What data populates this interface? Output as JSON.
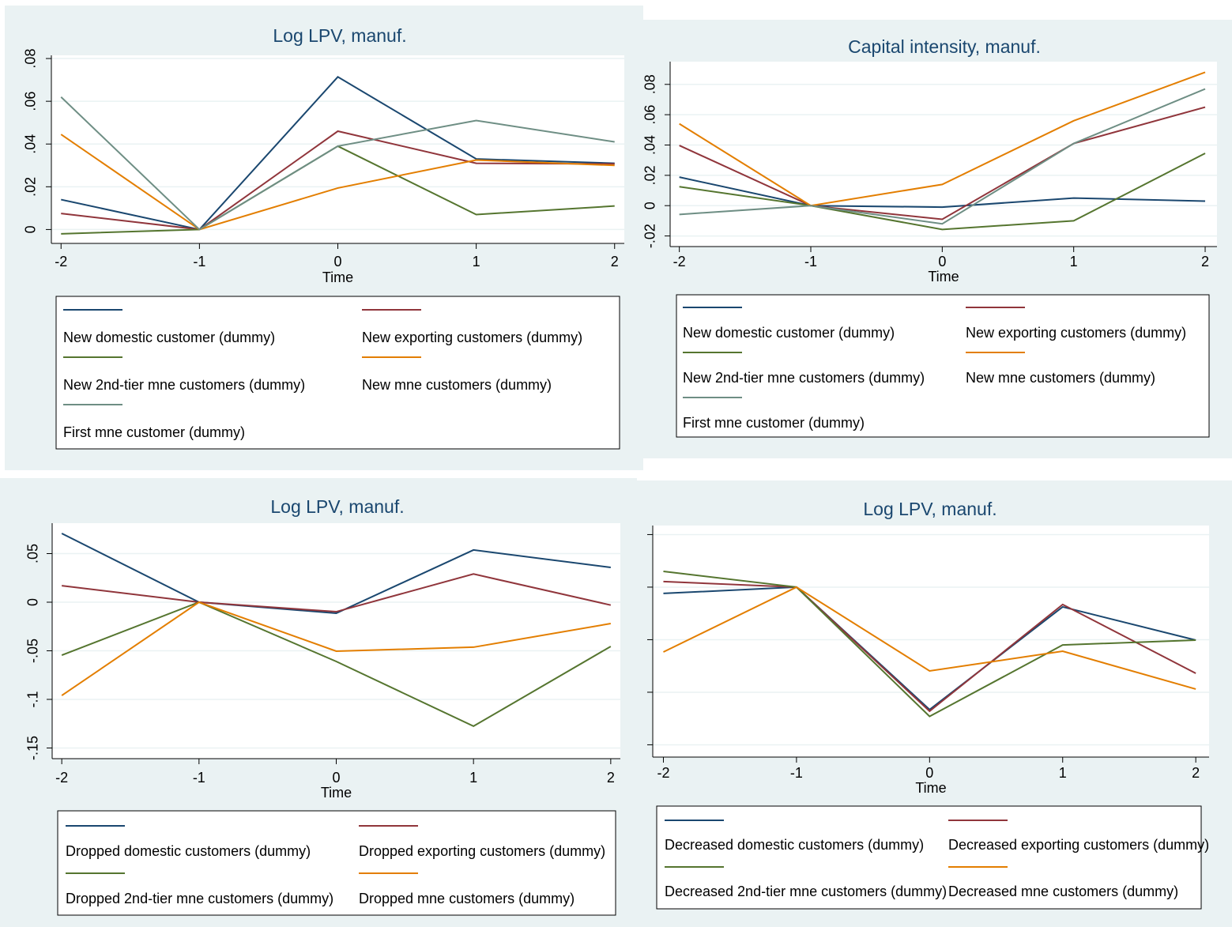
{
  "chart_data": [
    {
      "type": "line",
      "title": "Log LPV, manuf.",
      "xlabel": "Time",
      "x": [
        -2,
        -1,
        0,
        1,
        2
      ],
      "xlim": [
        -2.07,
        2.07
      ],
      "xticks": [
        -2,
        -1,
        0,
        1,
        2
      ],
      "ylim": [
        -0.0065,
        0.0815
      ],
      "yticks": [
        0,
        {
          "value": 0.02,
          "label": ".02"
        },
        {
          "value": 0.04,
          "label": ".04"
        },
        {
          "value": 0.06,
          "label": ".06"
        },
        {
          "value": 0.08,
          "label": ".08"
        }
      ],
      "grid": true,
      "ytick_labels": true,
      "series": [
        {
          "name": "New domestic customer (dummy)",
          "color": "#1a476f",
          "values": [
            0.014,
            0,
            0.0714,
            0.033,
            0.031
          ]
        },
        {
          "name": "New exporting customers (dummy)",
          "color": "#90353b",
          "values": [
            0.0075,
            0,
            0.046,
            0.031,
            0.0307
          ]
        },
        {
          "name": "New 2nd-tier mne customers (dummy)",
          "color": "#55752f",
          "values": [
            -0.002,
            0,
            0.039,
            0.007,
            0.011
          ]
        },
        {
          "name": "New mne customers (dummy)",
          "color": "#e37e00",
          "values": [
            0.0445,
            0,
            0.0194,
            0.0325,
            0.03
          ]
        },
        {
          "name": "First mne customer (dummy)",
          "color": "#6e8e84",
          "values": [
            0.062,
            0,
            0.039,
            0.051,
            0.041
          ]
        }
      ]
    },
    {
      "type": "line",
      "title": "Capital intensity, manuf.",
      "xlabel": "Time",
      "x": [
        -2,
        -1,
        0,
        1,
        2
      ],
      "xlim": [
        -2.07,
        2.09
      ],
      "xticks": [
        -2,
        -1,
        0,
        1,
        2
      ],
      "ylim": [
        -0.027,
        0.095
      ],
      "yticks": [
        {
          "value": -0.02,
          "label": "-.02"
        },
        0,
        {
          "value": 0.02,
          "label": ".02"
        },
        {
          "value": 0.04,
          "label": ".04"
        },
        {
          "value": 0.06,
          "label": ".06"
        },
        {
          "value": 0.08,
          "label": ".08"
        }
      ],
      "grid": true,
      "ytick_labels": true,
      "series": [
        {
          "name": "New domestic customer (dummy)",
          "color": "#1a476f",
          "values": [
            0.0188,
            0,
            -0.001,
            0.005,
            0.003
          ]
        },
        {
          "name": "New exporting customers (dummy)",
          "color": "#90353b",
          "values": [
            0.0397,
            0,
            -0.009,
            0.041,
            0.065
          ]
        },
        {
          "name": "New 2nd-tier mne customers (dummy)",
          "color": "#55752f",
          "values": [
            0.0125,
            0,
            -0.0157,
            -0.01,
            0.0345
          ]
        },
        {
          "name": "New mne customers (dummy)",
          "color": "#e37e00",
          "values": [
            0.054,
            0,
            0.014,
            0.056,
            0.088
          ]
        },
        {
          "name": "First mne customer (dummy)",
          "color": "#6e8e84",
          "values": [
            -0.0058,
            0,
            -0.012,
            0.041,
            0.077
          ]
        }
      ]
    },
    {
      "type": "line",
      "title": "Log LPV, manuf.",
      "xlabel": "Time",
      "x": [
        -2,
        -1,
        0,
        1,
        2
      ],
      "xlim": [
        -2.07,
        2.07
      ],
      "xticks": [
        -2,
        -1,
        0,
        1,
        2
      ],
      "ylim": [
        -0.161,
        0.0813
      ],
      "yticks": [
        {
          "value": -0.15,
          "label": "-.15"
        },
        {
          "value": -0.1,
          "label": "-.1"
        },
        {
          "value": -0.05,
          "label": "-.05"
        },
        0,
        {
          "value": 0.05,
          "label": ".05"
        }
      ],
      "grid": true,
      "ytick_labels": true,
      "series": [
        {
          "name": "Dropped domestic customers (dummy)",
          "color": "#1a476f",
          "values": [
            0.0707,
            0,
            -0.0114,
            0.0537,
            0.0358
          ]
        },
        {
          "name": "Dropped exporting customers (dummy)",
          "color": "#90353b",
          "values": [
            0.017,
            0,
            -0.0098,
            0.029,
            -0.003
          ]
        },
        {
          "name": "Dropped 2nd-tier mne customers (dummy)",
          "color": "#55752f",
          "values": [
            -0.0545,
            0,
            -0.061,
            -0.1276,
            -0.0455
          ]
        },
        {
          "name": "Dropped mne customers (dummy)",
          "color": "#e37e00",
          "values": [
            -0.096,
            0,
            -0.0504,
            -0.0463,
            -0.022
          ]
        }
      ]
    },
    {
      "type": "line",
      "title": "Log LPV, manuf.",
      "xlabel": "Time",
      "x": [
        -2,
        -1,
        0,
        1,
        2
      ],
      "xlim": [
        -2.08,
        2.1
      ],
      "xticks": [
        -2,
        -1,
        0,
        1,
        2
      ],
      "ylim": [
        -0.1617,
        0.0586
      ],
      "yticks": [
        -0.15,
        -0.1,
        -0.05,
        0,
        0.05
      ],
      "grid": true,
      "ytick_labels": false,
      "series": [
        {
          "name": "Decreased domestic customers (dummy)",
          "color": "#1a476f",
          "values": [
            -0.006,
            0,
            -0.1165,
            -0.0188,
            -0.0504
          ]
        },
        {
          "name": "Decreased exporting customers (dummy)",
          "color": "#90353b",
          "values": [
            0.0053,
            0,
            -0.118,
            -0.0165,
            -0.082
          ]
        },
        {
          "name": "Decreased 2nd-tier mne customers (dummy)",
          "color": "#55752f",
          "values": [
            0.015,
            0,
            -0.123,
            -0.055,
            -0.0504
          ]
        },
        {
          "name": "Decreased mne customers (dummy)",
          "color": "#e37e00",
          "values": [
            -0.0617,
            0,
            -0.0797,
            -0.061,
            -0.097
          ]
        }
      ]
    }
  ]
}
